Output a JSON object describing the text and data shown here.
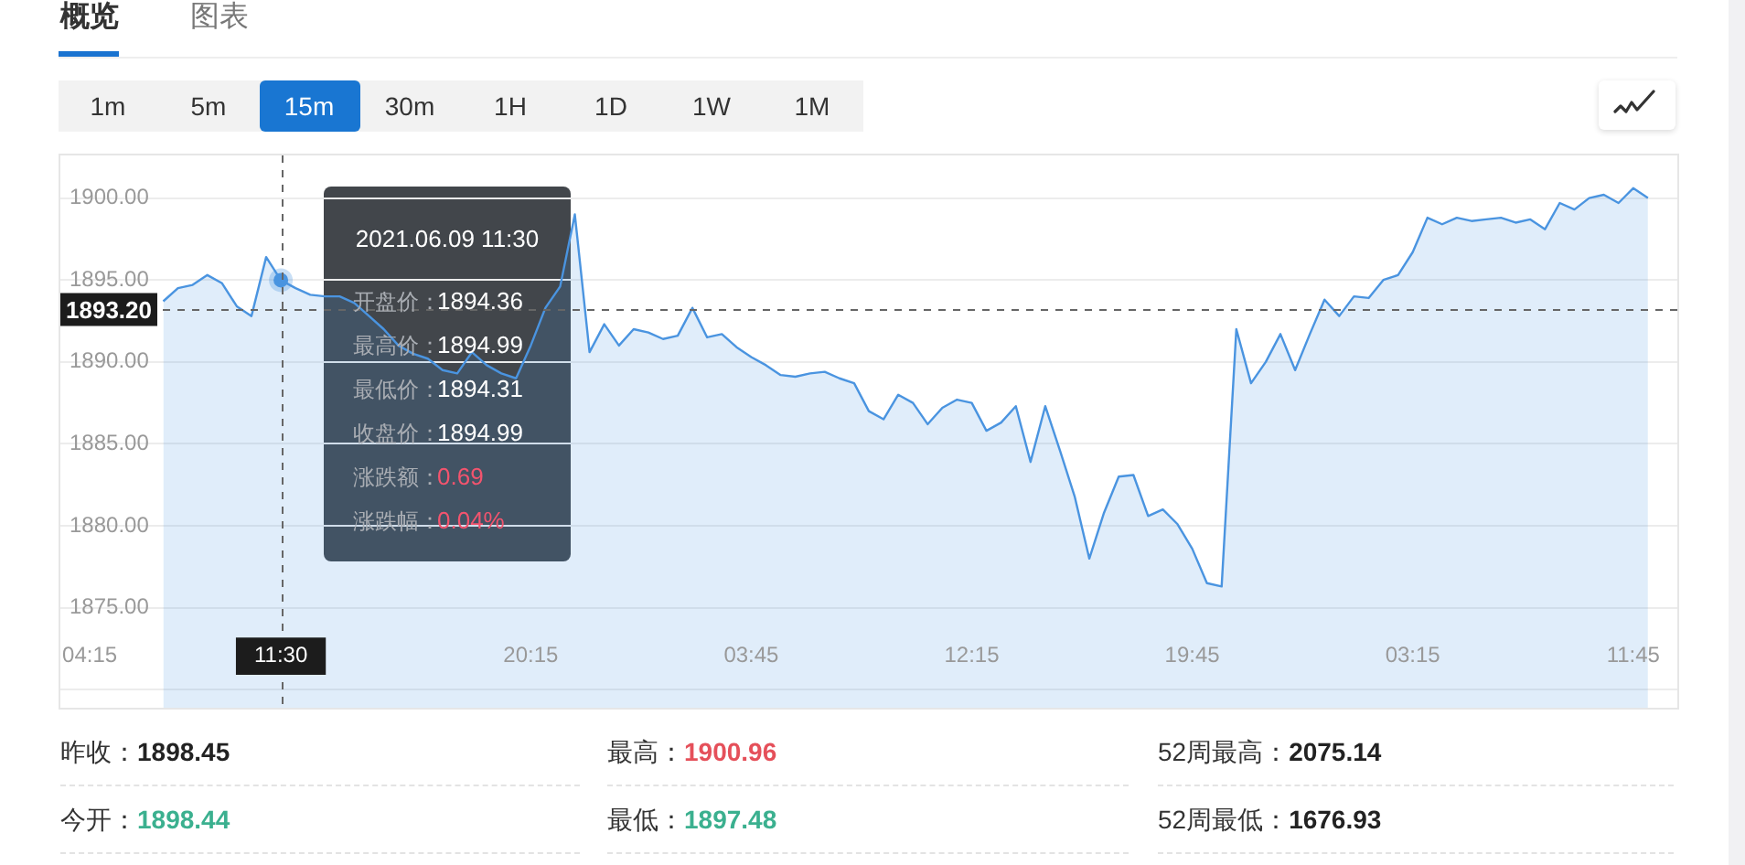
{
  "chart_data": {
    "type": "area",
    "categories": [
      null,
      null,
      "04:15",
      null,
      null,
      null,
      null,
      null,
      null,
      null,
      null,
      null,
      null,
      null,
      null,
      "11:30",
      null,
      null,
      null,
      null,
      null,
      null,
      null,
      null,
      null,
      null,
      null,
      null,
      null,
      null,
      null,
      null,
      "20:15",
      null,
      null,
      null,
      null,
      null,
      null,
      null,
      null,
      null,
      null,
      null,
      null,
      null,
      null,
      "03:45",
      null,
      null,
      null,
      null,
      null,
      null,
      null,
      null,
      null,
      null,
      null,
      null,
      null,
      null,
      "12:15",
      null,
      null,
      null,
      null,
      null,
      null,
      null,
      null,
      null,
      null,
      null,
      null,
      null,
      null,
      "19:45",
      null,
      null,
      null,
      null,
      null,
      null,
      null,
      null,
      null,
      null,
      null,
      null,
      null,
      null,
      "03:15",
      null,
      null,
      null,
      null,
      null,
      null,
      null,
      null,
      null,
      null,
      null,
      null,
      null,
      null,
      "11:45",
      null,
      null,
      null
    ],
    "values": [
      null,
      null,
      null,
      null,
      null,
      null,
      null,
      1893.7,
      1894.5,
      1894.7,
      1895.3,
      1894.8,
      1893.4,
      1892.8,
      1896.4,
      1894.99,
      1894.5,
      1894.1,
      1894.0,
      1894.0,
      1893.6,
      1892.8,
      1892.0,
      1891.0,
      1890.5,
      1890.2,
      1889.5,
      1889.3,
      1890.6,
      1889.8,
      1889.3,
      1889.0,
      1891.0,
      1893.3,
      1894.6,
      1899.0,
      1890.6,
      1892.3,
      1891.0,
      1892.0,
      1891.8,
      1891.4,
      1891.6,
      1893.3,
      1891.5,
      1891.7,
      1890.9,
      1890.3,
      1889.8,
      1889.2,
      1889.1,
      1889.3,
      1889.4,
      1889.0,
      1888.7,
      1887.0,
      1886.5,
      1888.0,
      1887.5,
      1886.2,
      1887.2,
      1887.7,
      1887.5,
      1885.8,
      1886.3,
      1887.3,
      1883.9,
      1887.3,
      1884.6,
      1881.8,
      1878.0,
      1880.8,
      1883.0,
      1883.1,
      1880.6,
      1881.0,
      1880.1,
      1878.6,
      1876.5,
      1876.3,
      1892.0,
      1888.7,
      1890.0,
      1891.7,
      1889.5,
      1891.7,
      1893.8,
      1892.8,
      1894.0,
      1893.9,
      1895.0,
      1895.3,
      1896.7,
      1898.8,
      1898.4,
      1898.8,
      1898.6,
      1898.7,
      1898.8,
      1898.5,
      1898.7,
      1898.1,
      1899.7,
      1899.3,
      1900.0,
      1900.2,
      1899.7,
      1900.6,
      1900.0,
      null,
      null
    ],
    "color": "#4a94e0",
    "ylim": [
      1868.9,
      1902.6
    ],
    "yticks": [
      {
        "value": 1870,
        "label": null
      },
      {
        "value": 1875,
        "label": "1875.00"
      },
      {
        "value": 1880,
        "label": "1880.00"
      },
      {
        "value": 1885,
        "label": "1885.00"
      },
      {
        "value": 1890,
        "label": "1890.00"
      },
      {
        "value": 1895,
        "label": "1895.00"
      },
      {
        "value": 1900,
        "label": "1900.00"
      }
    ],
    "grid": "y",
    "legend": false,
    "marker": "none",
    "ref_lines": [
      {
        "axis": "y",
        "value": 1893.2,
        "label": "1893.20",
        "line_style": "dashed",
        "color": "#666666"
      },
      {
        "axis": "x",
        "value": "11:30",
        "line_style": "dashed",
        "color": "#666666"
      }
    ],
    "annotations": [
      "概览",
      "图表",
      "1m",
      "5m",
      "15m",
      "30m",
      "1H",
      "1D",
      "1W",
      "1M",
      "2021.06.09 11:30",
      "开盘价：",
      "1894.36",
      "最高价：",
      "1894.99",
      "最低价：",
      "1894.31",
      "收盘价：",
      "1894.99",
      "涨跌额：",
      "0.69",
      "涨跌幅：",
      "0.04%",
      "昨收：",
      "1898.45",
      "最高：",
      "1900.96",
      "52周最高：",
      "2075.14",
      "今开：",
      "1898.44",
      "最低：",
      "1897.48",
      "52周最低：",
      "1676.93"
    ]
  }
}
